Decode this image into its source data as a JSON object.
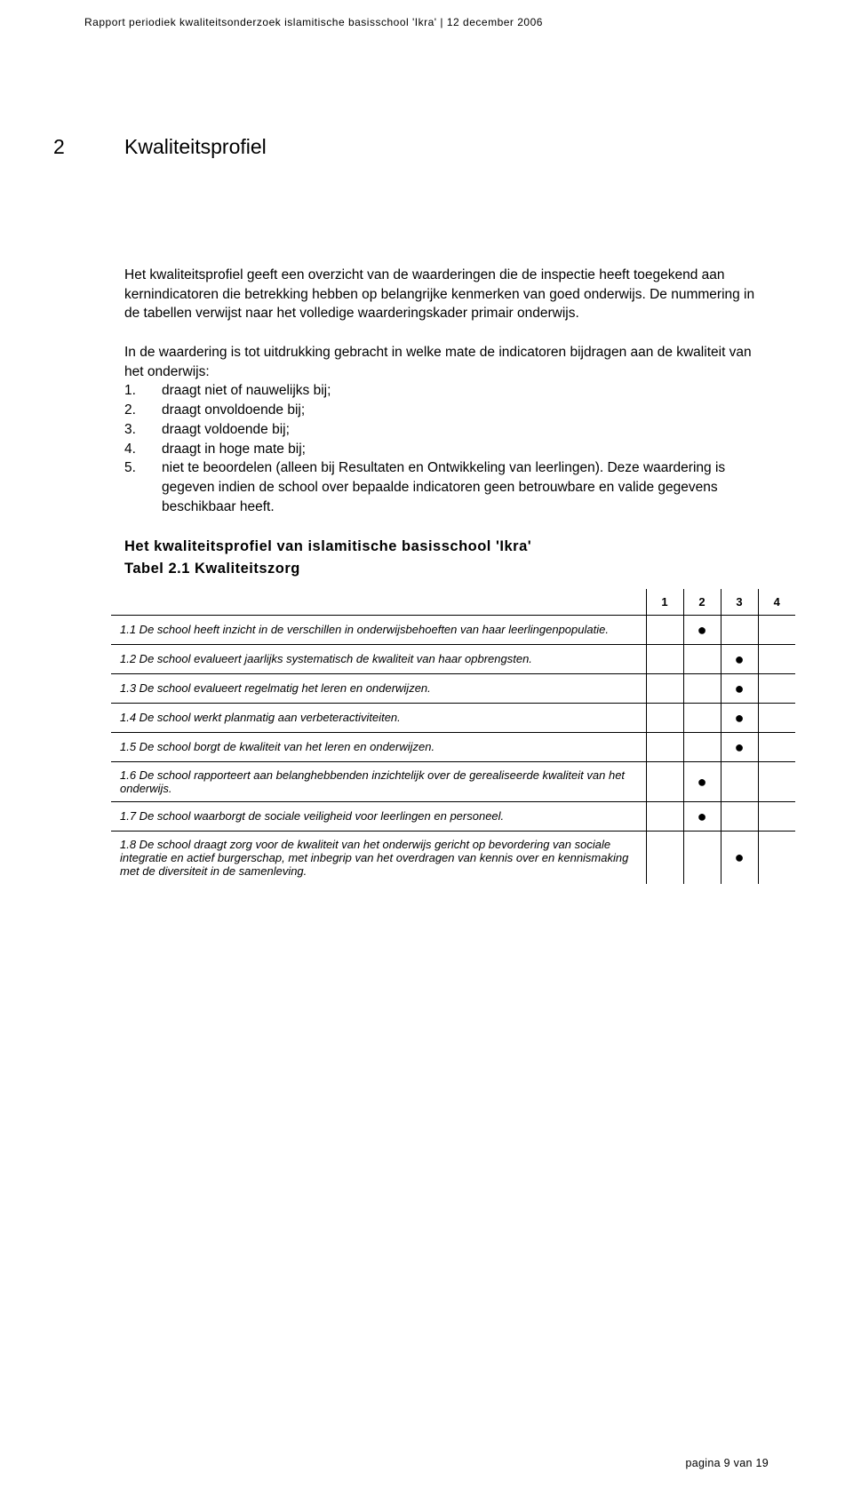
{
  "header": {
    "text": "Rapport periodiek kwaliteitsonderzoek islamitische basisschool 'Ikra'  |  12 december 2006"
  },
  "section": {
    "number": "2",
    "title": "Kwaliteitsprofiel"
  },
  "paras": {
    "p1": "Het kwaliteitsprofiel geeft een overzicht van de waarderingen die de inspectie heeft toegekend aan kernindicatoren die betrekking hebben op belangrijke kenmerken van goed onderwijs. De nummering in de tabellen verwijst naar het volledige waarderingskader primair onderwijs.",
    "p2": "In de waardering is tot uitdrukking gebracht in welke mate de indicatoren bijdragen aan de kwaliteit van het onderwijs:"
  },
  "list": [
    {
      "n": "1.",
      "t": "draagt niet of nauwelijks bij;"
    },
    {
      "n": "2.",
      "t": "draagt onvoldoende bij;"
    },
    {
      "n": "3.",
      "t": "draagt voldoende bij;"
    },
    {
      "n": "4.",
      "t": "draagt in hoge mate bij;"
    },
    {
      "n": "5.",
      "t": "niet te beoordelen (alleen bij Resultaten en Ontwikkeling van leerlingen). Deze waardering is gegeven indien de school over bepaalde indicatoren geen betrouwbare en valide gegevens beschikbaar heeft."
    }
  ],
  "subhead": {
    "line1": "Het kwaliteitsprofiel van islamitische basisschool 'Ikra'",
    "line2": "Tabel 2.1 Kwaliteitszorg"
  },
  "table": {
    "cols": [
      "1",
      "2",
      "3",
      "4"
    ],
    "rows": [
      {
        "desc": "1.1 De school heeft inzicht in de verschillen in onderwijsbehoeften van haar leerlingenpopulatie.",
        "mark": 2
      },
      {
        "desc": "1.2 De school evalueert jaarlijks systematisch de kwaliteit van haar opbrengsten.",
        "mark": 3
      },
      {
        "desc": "1.3 De school evalueert regelmatig het leren en onderwijzen.",
        "mark": 3
      },
      {
        "desc": "1.4 De school werkt planmatig aan verbeteractiviteiten.",
        "mark": 3
      },
      {
        "desc": "1.5 De school borgt de kwaliteit van het leren en onderwijzen.",
        "mark": 3
      },
      {
        "desc": "1.6 De school rapporteert aan belanghebbenden inzichtelijk over de gerealiseerde kwaliteit van het onderwijs.",
        "mark": 2
      },
      {
        "desc": "1.7 De school waarborgt de sociale veiligheid voor leerlingen en personeel.",
        "mark": 2
      },
      {
        "desc": "1.8 De school draagt zorg voor de kwaliteit van het onderwijs gericht op bevordering van sociale integratie en actief burgerschap, met inbegrip van het overdragen van kennis over en kennismaking met de diversiteit in de samenleving.",
        "mark": 3
      }
    ]
  },
  "footer": {
    "text": "pagina 9 van 19"
  }
}
